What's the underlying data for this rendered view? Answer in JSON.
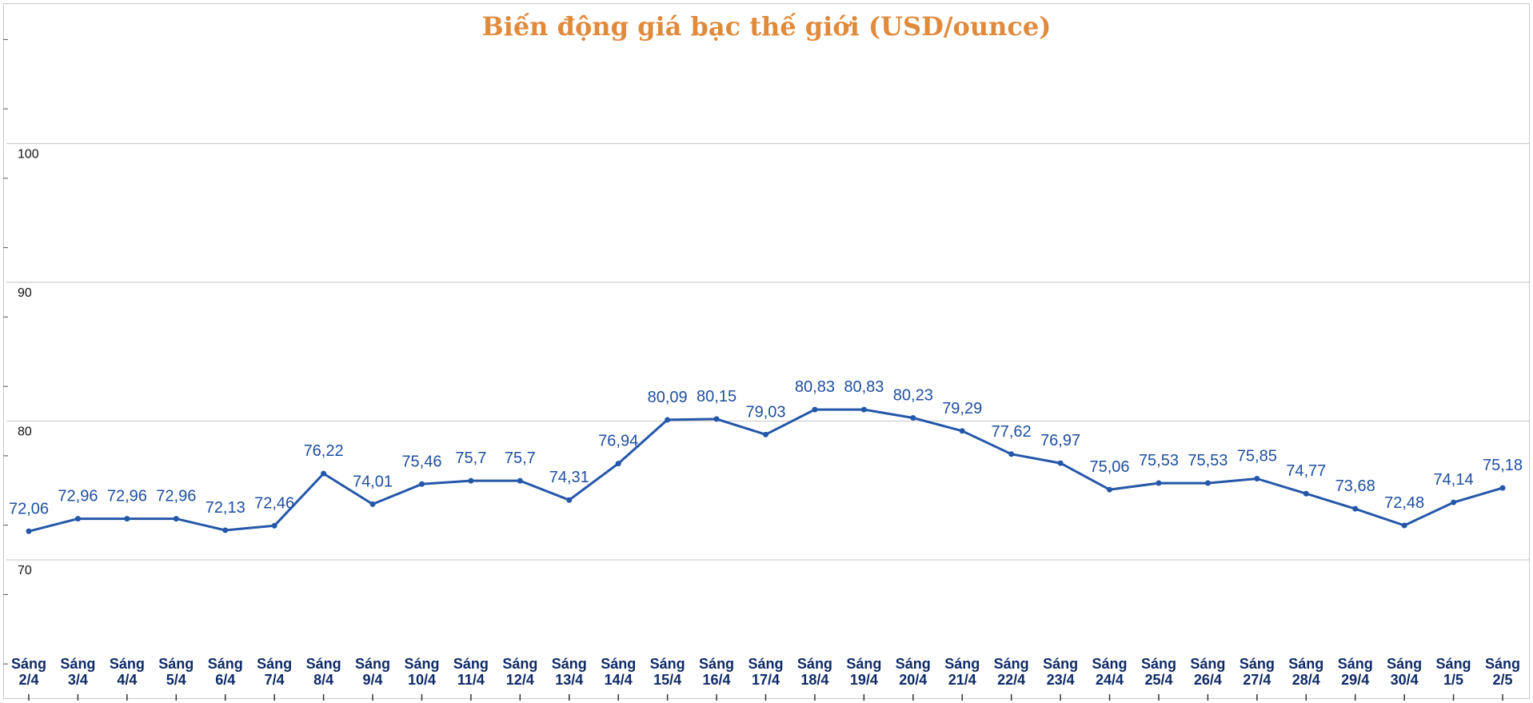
{
  "chart_data": {
    "type": "line",
    "title": "Biến động giá bạc thế giới (USD/ounce)",
    "xlabel": "",
    "ylabel": "",
    "ylim": [
      60,
      110
    ],
    "y_ticks": [
      70,
      80,
      90,
      100
    ],
    "grid": true,
    "legend": "none",
    "colors": {
      "line": "#2457a8",
      "title": "#e08a3c",
      "labels": "#1f4fa0",
      "xlabels": "#0e2a66"
    },
    "categories": [
      [
        "Sáng",
        "2/4"
      ],
      [
        "Sáng",
        "3/4"
      ],
      [
        "Sáng",
        "4/4"
      ],
      [
        "Sáng",
        "5/4"
      ],
      [
        "Sáng",
        "6/4"
      ],
      [
        "Sáng",
        "7/4"
      ],
      [
        "Sáng",
        "8/4"
      ],
      [
        "Sáng",
        "9/4"
      ],
      [
        "Sáng",
        "10/4"
      ],
      [
        "Sáng",
        "11/4"
      ],
      [
        "Sáng",
        "12/4"
      ],
      [
        "Sáng",
        "13/4"
      ],
      [
        "Sáng",
        "14/4"
      ],
      [
        "Sáng",
        "15/4"
      ],
      [
        "Sáng",
        "16/4"
      ],
      [
        "Sáng",
        "17/4"
      ],
      [
        "Sáng",
        "18/4"
      ],
      [
        "Sáng",
        "19/4"
      ],
      [
        "Sáng",
        "20/4"
      ],
      [
        "Sáng",
        "21/4"
      ],
      [
        "Sáng",
        "22/4"
      ],
      [
        "Sáng",
        "23/4"
      ],
      [
        "Sáng",
        "24/4"
      ],
      [
        "Sáng",
        "25/4"
      ],
      [
        "Sáng",
        "26/4"
      ],
      [
        "Sáng",
        "27/4"
      ],
      [
        "Sáng",
        "28/4"
      ],
      [
        "Sáng",
        "29/4"
      ],
      [
        "Sáng",
        "30/4"
      ],
      [
        "Sáng",
        "1/5"
      ],
      [
        "Sáng",
        "2/5"
      ]
    ],
    "values": [
      72.06,
      72.96,
      72.96,
      72.96,
      72.13,
      72.46,
      76.22,
      74.01,
      75.46,
      75.7,
      75.7,
      74.31,
      76.94,
      80.09,
      80.15,
      79.03,
      80.83,
      80.83,
      80.23,
      79.29,
      77.62,
      76.97,
      75.06,
      75.53,
      75.53,
      75.85,
      74.77,
      73.68,
      72.48,
      74.14,
      75.18
    ],
    "value_labels": [
      "72,06",
      "72,96",
      "72,96",
      "72,96",
      "72,13",
      "72,46",
      "76,22",
      "74,01",
      "75,46",
      "75,7",
      "75,7",
      "74,31",
      "76,94",
      "80,09",
      "80,15",
      "79,03",
      "80,83",
      "80,83",
      "80,23",
      "79,29",
      "77,62",
      "76,97",
      "75,06",
      "75,53",
      "75,53",
      "75,85",
      "74,77",
      "73,68",
      "72,48",
      "74,14",
      "75,18"
    ]
  }
}
